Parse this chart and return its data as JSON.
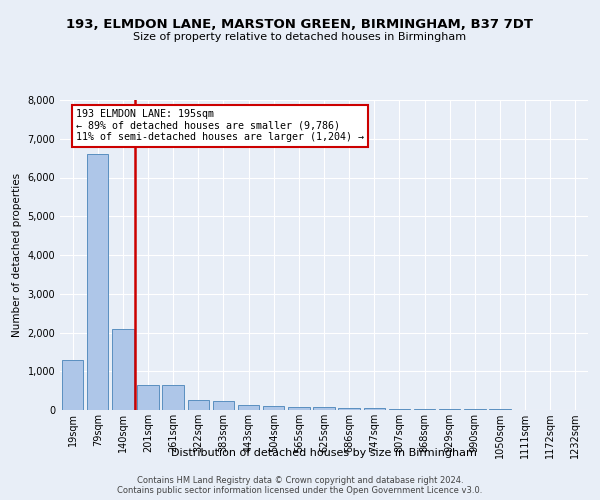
{
  "title1": "193, ELMDON LANE, MARSTON GREEN, BIRMINGHAM, B37 7DT",
  "title2": "Size of property relative to detached houses in Birmingham",
  "xlabel": "Distribution of detached houses by size in Birmingham",
  "ylabel": "Number of detached properties",
  "bar_labels": [
    "19sqm",
    "79sqm",
    "140sqm",
    "201sqm",
    "261sqm",
    "322sqm",
    "383sqm",
    "443sqm",
    "504sqm",
    "565sqm",
    "625sqm",
    "686sqm",
    "747sqm",
    "807sqm",
    "868sqm",
    "929sqm",
    "990sqm",
    "1050sqm",
    "1111sqm",
    "1172sqm",
    "1232sqm"
  ],
  "bar_values": [
    1300,
    6600,
    2080,
    650,
    640,
    250,
    230,
    130,
    110,
    80,
    75,
    50,
    45,
    35,
    25,
    20,
    15,
    15,
    12,
    10,
    8
  ],
  "bar_color": "#aec6e8",
  "bar_edge_color": "#5a8fc0",
  "vline_color": "#cc0000",
  "annotation_title": "193 ELMDON LANE: 195sqm",
  "annotation_line1": "← 89% of detached houses are smaller (9,786)",
  "annotation_line2": "11% of semi-detached houses are larger (1,204) →",
  "annotation_box_color": "#cc0000",
  "ylim": [
    0,
    8000
  ],
  "yticks": [
    0,
    1000,
    2000,
    3000,
    4000,
    5000,
    6000,
    7000,
    8000
  ],
  "bg_color": "#e8eef7",
  "footnote1": "Contains HM Land Registry data © Crown copyright and database right 2024.",
  "footnote2": "Contains public sector information licensed under the Open Government Licence v3.0."
}
